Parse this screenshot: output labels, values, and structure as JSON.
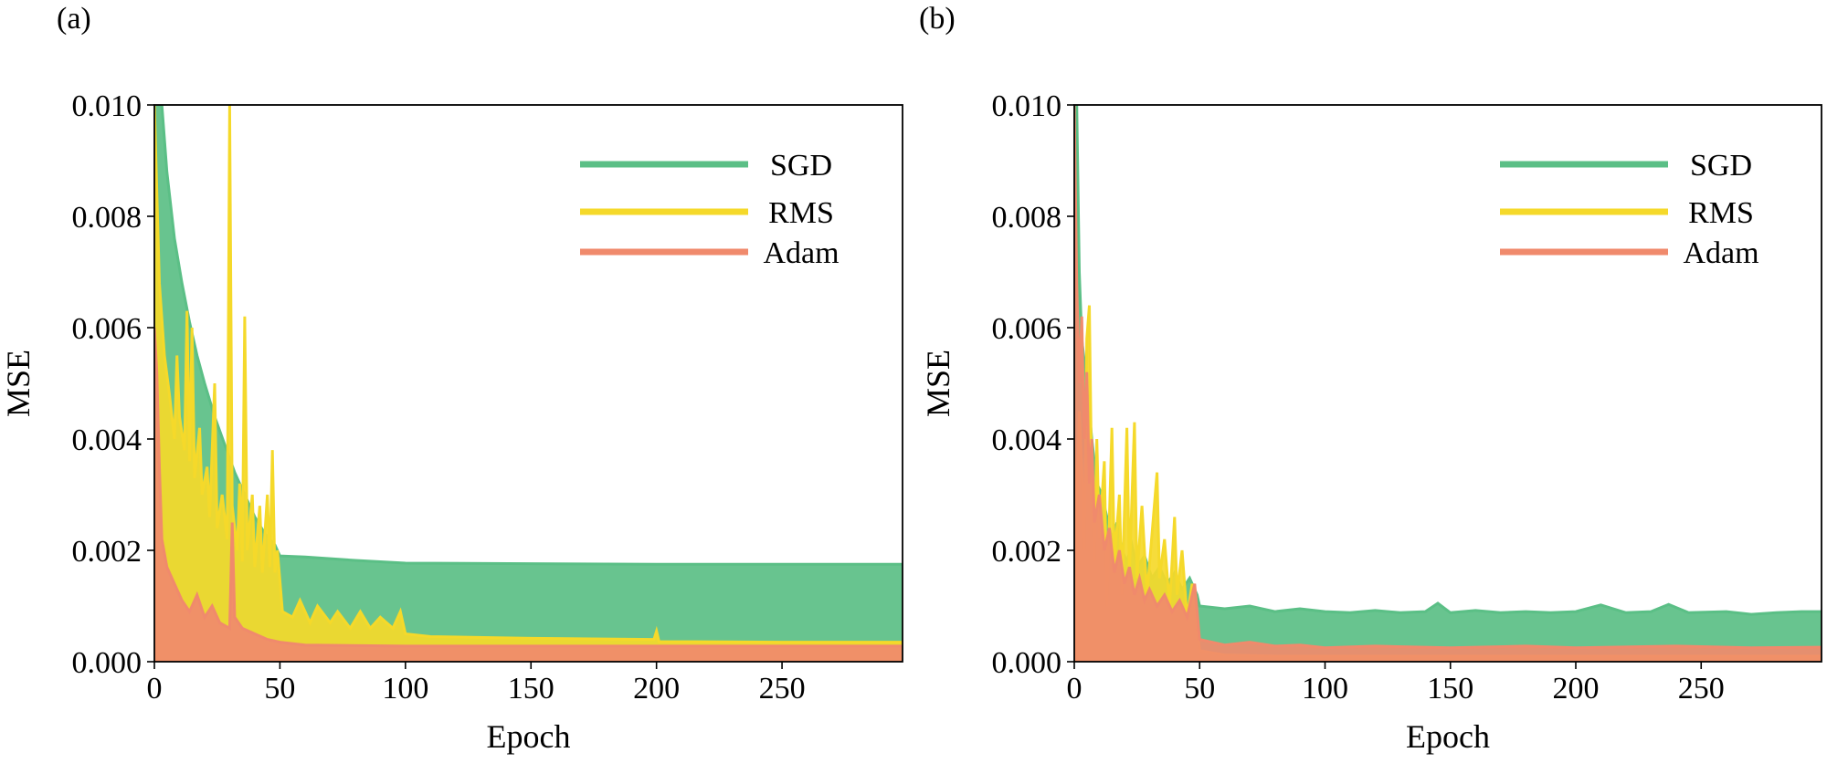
{
  "colors": {
    "SGD": "#5bbf86",
    "RMS": "#f5d92a",
    "Adam": "#f08a6c"
  },
  "chart_data": [
    {
      "type": "area",
      "panel_label": "(a)",
      "xlabel": "Epoch",
      "ylabel": "MSE",
      "xlim": [
        0,
        298
      ],
      "ylim": [
        0,
        0.01
      ],
      "xticks": [
        0,
        50,
        100,
        150,
        200,
        250
      ],
      "xtick_labels": [
        "0",
        "50",
        "100",
        "150",
        "200",
        "250"
      ],
      "yticks": [
        0,
        0.002,
        0.004,
        0.006,
        0.008,
        0.01
      ],
      "ytick_labels": [
        "0.000",
        "0.002",
        "0.004",
        "0.006",
        "0.008",
        "0.010"
      ],
      "legend_position": "top-right",
      "series": [
        {
          "name": "SGD",
          "legend": "SGD",
          "points": [
            [
              0,
              0.01
            ],
            [
              3,
              0.01
            ],
            [
              5,
              0.0088
            ],
            [
              8,
              0.0076
            ],
            [
              11,
              0.0068
            ],
            [
              14,
              0.0061
            ],
            [
              17,
              0.0055
            ],
            [
              20,
              0.005
            ],
            [
              24,
              0.0044
            ],
            [
              28,
              0.0039
            ],
            [
              32,
              0.0034
            ],
            [
              36,
              0.003
            ],
            [
              40,
              0.0026
            ],
            [
              44,
              0.0023
            ],
            [
              48,
              0.0021
            ],
            [
              50,
              0.0019
            ],
            [
              60,
              0.00188
            ],
            [
              80,
              0.00182
            ],
            [
              100,
              0.00177
            ],
            [
              150,
              0.00176
            ],
            [
              200,
              0.00175
            ],
            [
              250,
              0.00175
            ],
            [
              298,
              0.00175
            ]
          ]
        },
        {
          "name": "RMS",
          "legend": "RMS",
          "points": [
            [
              0,
              0.01
            ],
            [
              2,
              0.0068
            ],
            [
              4,
              0.0055
            ],
            [
              6,
              0.0048
            ],
            [
              8,
              0.004
            ],
            [
              9,
              0.0055
            ],
            [
              10,
              0.0044
            ],
            [
              12,
              0.0038
            ],
            [
              13,
              0.0063
            ],
            [
              14,
              0.0036
            ],
            [
              15,
              0.006
            ],
            [
              16,
              0.0033
            ],
            [
              18,
              0.0042
            ],
            [
              19,
              0.003
            ],
            [
              21,
              0.0035
            ],
            [
              22,
              0.0026
            ],
            [
              24,
              0.005
            ],
            [
              25,
              0.0024
            ],
            [
              27,
              0.003
            ],
            [
              29,
              0.0022
            ],
            [
              30,
              0.01
            ],
            [
              31,
              0.0028
            ],
            [
              33,
              0.002
            ],
            [
              34,
              0.0032
            ],
            [
              35,
              0.0018
            ],
            [
              36,
              0.0062
            ],
            [
              37,
              0.002
            ],
            [
              39,
              0.003
            ],
            [
              40,
              0.0017
            ],
            [
              42,
              0.0028
            ],
            [
              43,
              0.0016
            ],
            [
              45,
              0.003
            ],
            [
              46,
              0.0017
            ],
            [
              47,
              0.0038
            ],
            [
              48,
              0.0016
            ],
            [
              49,
              0.002
            ],
            [
              51,
              0.0009
            ],
            [
              55,
              0.0008
            ],
            [
              58,
              0.0011
            ],
            [
              62,
              0.0007
            ],
            [
              65,
              0.001
            ],
            [
              70,
              0.0007
            ],
            [
              73,
              0.0009
            ],
            [
              78,
              0.0006
            ],
            [
              82,
              0.0009
            ],
            [
              86,
              0.0006
            ],
            [
              90,
              0.0008
            ],
            [
              95,
              0.0006
            ],
            [
              98,
              0.0009
            ],
            [
              100,
              0.0005
            ],
            [
              110,
              0.00045
            ],
            [
              150,
              0.00042
            ],
            [
              199,
              0.0004
            ],
            [
              200,
              0.00055
            ],
            [
              201,
              0.00036
            ],
            [
              250,
              0.00035
            ],
            [
              298,
              0.00035
            ]
          ]
        },
        {
          "name": "Adam",
          "legend": "Adam",
          "points": [
            [
              0,
              0.006
            ],
            [
              1,
              0.0052
            ],
            [
              2,
              0.0035
            ],
            [
              3,
              0.0022
            ],
            [
              5,
              0.0017
            ],
            [
              7,
              0.0015
            ],
            [
              9,
              0.0013
            ],
            [
              11,
              0.0011
            ],
            [
              14,
              0.0009
            ],
            [
              17,
              0.0012
            ],
            [
              20,
              0.0008
            ],
            [
              23,
              0.001
            ],
            [
              26,
              0.0007
            ],
            [
              30,
              0.0006
            ],
            [
              31,
              0.0025
            ],
            [
              32,
              0.0008
            ],
            [
              35,
              0.0006
            ],
            [
              40,
              0.0005
            ],
            [
              45,
              0.0004
            ],
            [
              50,
              0.00035
            ],
            [
              60,
              0.0003
            ],
            [
              100,
              0.00028
            ],
            [
              150,
              0.00028
            ],
            [
              200,
              0.00028
            ],
            [
              250,
              0.00028
            ],
            [
              298,
              0.00028
            ]
          ]
        }
      ]
    },
    {
      "type": "area",
      "panel_label": "(b)",
      "xlabel": "Epoch",
      "ylabel": "MSE",
      "xlim": [
        0,
        298
      ],
      "ylim": [
        0,
        0.01
      ],
      "xticks": [
        0,
        50,
        100,
        150,
        200,
        250
      ],
      "xtick_labels": [
        "0",
        "50",
        "100",
        "150",
        "200",
        "250"
      ],
      "yticks": [
        0,
        0.002,
        0.004,
        0.006,
        0.008,
        0.01
      ],
      "ytick_labels": [
        "0.000",
        "0.002",
        "0.004",
        "0.006",
        "0.008",
        "0.010"
      ],
      "legend_position": "top-right",
      "series": [
        {
          "name": "SGD",
          "legend": "SGD",
          "points": [
            [
              0,
              0.01
            ],
            [
              1,
              0.01
            ],
            [
              2,
              0.007
            ],
            [
              3,
              0.0058
            ],
            [
              5,
              0.005
            ],
            [
              7,
              0.004
            ],
            [
              9,
              0.0032
            ],
            [
              11,
              0.003
            ],
            [
              13,
              0.0026
            ],
            [
              15,
              0.0022
            ],
            [
              17,
              0.0025
            ],
            [
              19,
              0.002
            ],
            [
              21,
              0.0018
            ],
            [
              23,
              0.0021
            ],
            [
              25,
              0.0017
            ],
            [
              28,
              0.0019
            ],
            [
              31,
              0.0015
            ],
            [
              34,
              0.0017
            ],
            [
              37,
              0.0014
            ],
            [
              40,
              0.0016
            ],
            [
              43,
              0.0013
            ],
            [
              46,
              0.0015
            ],
            [
              49,
              0.0012
            ],
            [
              50,
              0.001
            ],
            [
              60,
              0.00095
            ],
            [
              70,
              0.001
            ],
            [
              80,
              0.0009
            ],
            [
              90,
              0.00095
            ],
            [
              100,
              0.0009
            ],
            [
              110,
              0.00088
            ],
            [
              120,
              0.00092
            ],
            [
              130,
              0.00088
            ],
            [
              140,
              0.0009
            ],
            [
              145,
              0.00105
            ],
            [
              150,
              0.00088
            ],
            [
              160,
              0.00092
            ],
            [
              170,
              0.00088
            ],
            [
              180,
              0.0009
            ],
            [
              190,
              0.00088
            ],
            [
              200,
              0.0009
            ],
            [
              210,
              0.00102
            ],
            [
              220,
              0.00088
            ],
            [
              230,
              0.0009
            ],
            [
              237,
              0.00103
            ],
            [
              245,
              0.00088
            ],
            [
              260,
              0.0009
            ],
            [
              270,
              0.00085
            ],
            [
              280,
              0.00088
            ],
            [
              290,
              0.0009
            ],
            [
              298,
              0.0009
            ]
          ]
        },
        {
          "name": "RMS",
          "legend": "RMS",
          "points": [
            [
              0,
              0.004
            ],
            [
              1,
              0.0025
            ],
            [
              2,
              0.0045
            ],
            [
              3,
              0.0035
            ],
            [
              4,
              0.002
            ],
            [
              5,
              0.0058
            ],
            [
              6,
              0.0064
            ],
            [
              7,
              0.003
            ],
            [
              8,
              0.0018
            ],
            [
              9,
              0.004
            ],
            [
              10,
              0.0022
            ],
            [
              12,
              0.0036
            ],
            [
              13,
              0.001
            ],
            [
              15,
              0.0042
            ],
            [
              16,
              0.0018
            ],
            [
              18,
              0.003
            ],
            [
              19,
              0.0012
            ],
            [
              21,
              0.0042
            ],
            [
              22,
              0.0016
            ],
            [
              24,
              0.0043
            ],
            [
              25,
              0.0015
            ],
            [
              27,
              0.0028
            ],
            [
              29,
              0.0012
            ],
            [
              31,
              0.0023
            ],
            [
              33,
              0.0034
            ],
            [
              34,
              0.0015
            ],
            [
              36,
              0.0022
            ],
            [
              38,
              0.001
            ],
            [
              40,
              0.0026
            ],
            [
              41,
              0.0012
            ],
            [
              43,
              0.002
            ],
            [
              45,
              0.0008
            ],
            [
              47,
              0.0014
            ],
            [
              49,
              0.0006
            ],
            [
              50,
              0.0002
            ],
            [
              60,
              0.00012
            ],
            [
              80,
              0.0001
            ],
            [
              100,
              0.0001
            ],
            [
              150,
              0.0001
            ],
            [
              200,
              0.0001
            ],
            [
              250,
              0.0001
            ],
            [
              298,
              0.0001
            ]
          ]
        },
        {
          "name": "Adam",
          "legend": "Adam",
          "points": [
            [
              0,
              0.01
            ],
            [
              1,
              0.0068
            ],
            [
              2,
              0.005
            ],
            [
              3,
              0.0062
            ],
            [
              4,
              0.004
            ],
            [
              5,
              0.0052
            ],
            [
              6,
              0.0032
            ],
            [
              7,
              0.004
            ],
            [
              8,
              0.0025
            ],
            [
              10,
              0.003
            ],
            [
              12,
              0.002
            ],
            [
              14,
              0.0024
            ],
            [
              16,
              0.0016
            ],
            [
              18,
              0.002
            ],
            [
              20,
              0.0014
            ],
            [
              22,
              0.0017
            ],
            [
              24,
              0.0012
            ],
            [
              26,
              0.0015
            ],
            [
              28,
              0.0011
            ],
            [
              30,
              0.0013
            ],
            [
              33,
              0.001
            ],
            [
              36,
              0.0012
            ],
            [
              39,
              0.0009
            ],
            [
              42,
              0.0011
            ],
            [
              45,
              0.0008
            ],
            [
              48,
              0.0014
            ],
            [
              50,
              0.0004
            ],
            [
              60,
              0.0003
            ],
            [
              70,
              0.00035
            ],
            [
              80,
              0.00028
            ],
            [
              90,
              0.0003
            ],
            [
              100,
              0.00025
            ],
            [
              120,
              0.00028
            ],
            [
              150,
              0.00025
            ],
            [
              180,
              0.00028
            ],
            [
              200,
              0.00025
            ],
            [
              240,
              0.00028
            ],
            [
              270,
              0.00025
            ],
            [
              298,
              0.00026
            ]
          ]
        }
      ]
    }
  ]
}
